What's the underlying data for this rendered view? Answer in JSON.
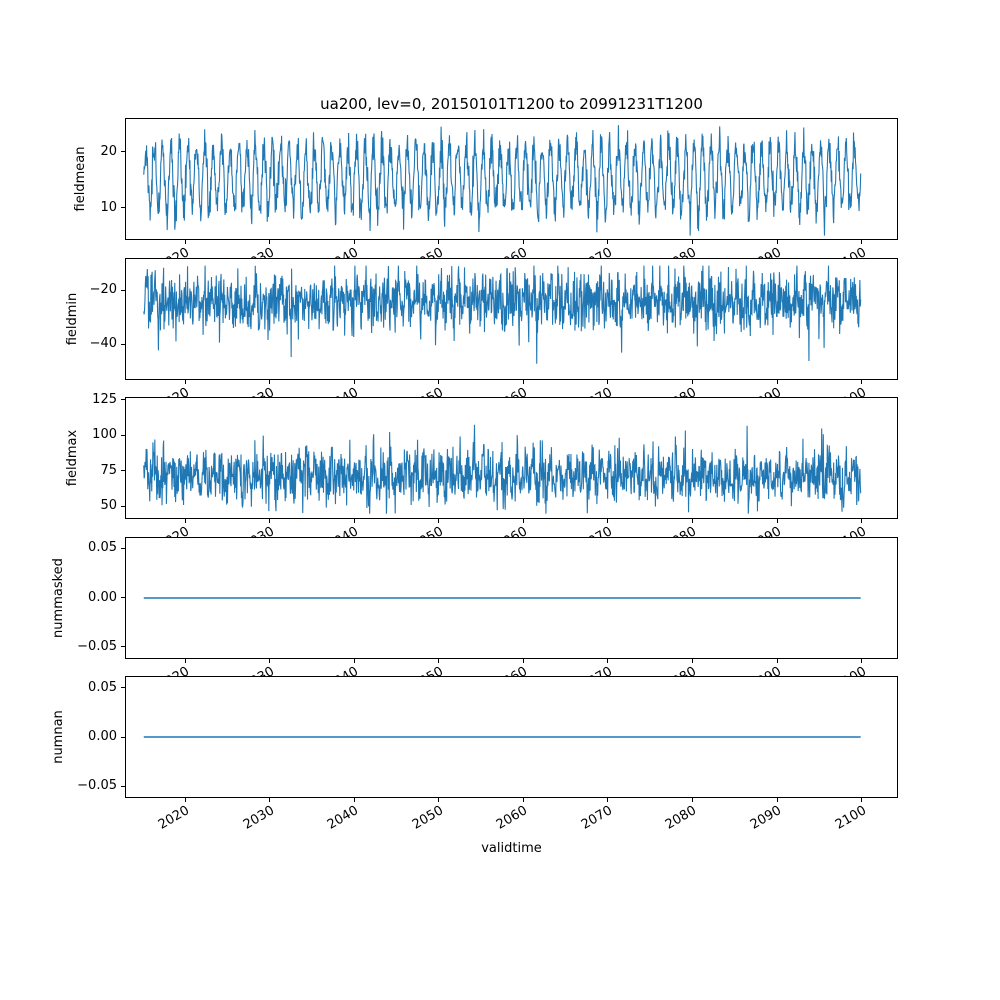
{
  "figure": {
    "title": "ua200, lev=0, 20150101T1200 to 20991231T1200",
    "xlabel": "validtime",
    "background": "#ffffff",
    "line_color": "#1f77b4",
    "frame_color": "#000000",
    "xlim": [
      2012.9,
      2104.3
    ],
    "xticks": [
      2020,
      2030,
      2040,
      2050,
      2060,
      2070,
      2080,
      2090,
      2100
    ],
    "xtick_labels": [
      "2020",
      "2030",
      "2040",
      "2050",
      "2060",
      "2070",
      "2080",
      "2090",
      "2100"
    ],
    "x_data_range": [
      2015.0,
      2100.0
    ]
  },
  "chart_data": [
    {
      "type": "line",
      "ylabel": "fieldmean",
      "ylim": [
        4.2,
        26.0
      ],
      "yticks": [
        10,
        20
      ],
      "ytick_labels": [
        "10",
        "20"
      ],
      "signal": {
        "kind": "seasonal-noise",
        "base": 15.5,
        "seasonal_amp": 5.5,
        "noise_sd": 1.6,
        "clip": [
          4.8,
          25.6
        ],
        "seed": 101
      },
      "points": 1800,
      "stroke_width": 1.1
    },
    {
      "type": "line",
      "ylabel": "fieldmin",
      "ylim": [
        -53,
        -8
      ],
      "yticks": [
        -40,
        -20
      ],
      "ytick_labels": [
        "−40",
        "−20"
      ],
      "signal": {
        "kind": "noisy-band",
        "base": -23.5,
        "seasonal_amp": 2.5,
        "noise_sd": 5.5,
        "spike_amp": -13,
        "spike_p": 0.02,
        "clip": [
          -51.5,
          -10.5
        ],
        "seed": 202
      },
      "points": 1800,
      "stroke_width": 1.1
    },
    {
      "type": "line",
      "ylabel": "fieldmax",
      "ylim": [
        41,
        127
      ],
      "yticks": [
        50,
        75,
        100,
        125
      ],
      "ytick_labels": [
        "50",
        "75",
        "100",
        "125"
      ],
      "signal": {
        "kind": "noisy-band",
        "base": 71,
        "seasonal_amp": 6,
        "noise_sd": 9,
        "spike_amp": 26,
        "spike_p": 0.02,
        "clip": [
          44,
          125
        ],
        "seed": 303
      },
      "points": 1800,
      "stroke_width": 1.1
    },
    {
      "type": "line",
      "ylabel": "nummasked",
      "ylim": [
        -0.062,
        0.062
      ],
      "yticks": [
        -0.05,
        0,
        0.05
      ],
      "ytick_labels": [
        "−0.05",
        "0.00",
        "0.05"
      ],
      "signal": {
        "kind": "constant",
        "value": 0,
        "seed": 404
      },
      "points": 2,
      "stroke_width": 1.5
    },
    {
      "type": "line",
      "ylabel": "numnan",
      "ylim": [
        -0.062,
        0.062
      ],
      "yticks": [
        -0.05,
        0,
        0.05
      ],
      "ytick_labels": [
        "−0.05",
        "0.00",
        "0.05"
      ],
      "signal": {
        "kind": "constant",
        "value": 0,
        "seed": 505
      },
      "points": 2,
      "stroke_width": 1.5
    }
  ]
}
